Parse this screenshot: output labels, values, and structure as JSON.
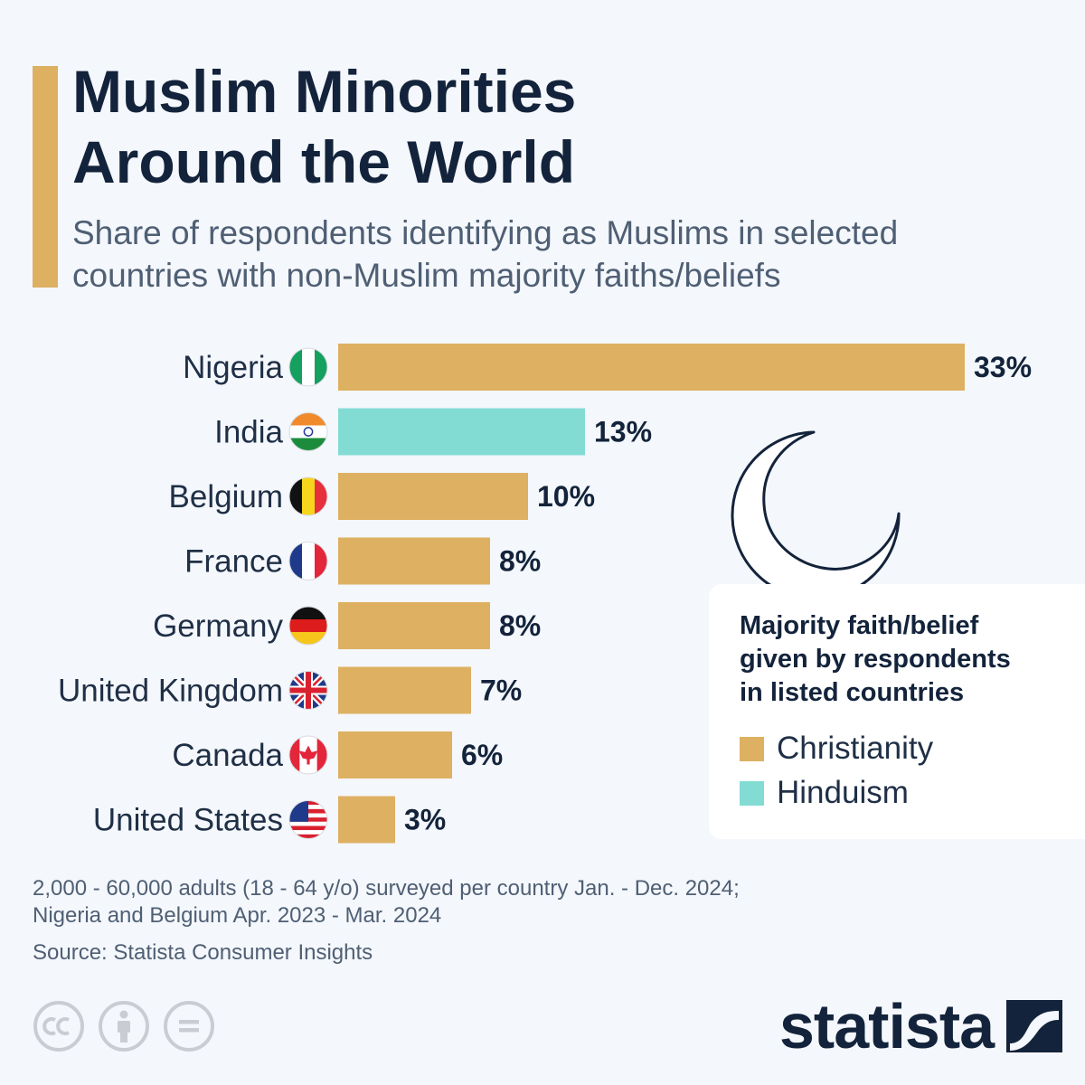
{
  "title": {
    "line1": "Muslim Minorities",
    "line2": "Around the World"
  },
  "subtitle": {
    "line1": "Share of respondents identifying as Muslims in selected",
    "line2": "countries with non-Muslim majority faiths/beliefs"
  },
  "chart_data": {
    "type": "bar",
    "orientation": "horizontal",
    "title": "Muslim Minorities Around the World",
    "unit": "%",
    "categories": [
      "Nigeria",
      "India",
      "Belgium",
      "France",
      "Germany",
      "United Kingdom",
      "Canada",
      "United States"
    ],
    "values": [
      33,
      13,
      10,
      8,
      8,
      7,
      6,
      3
    ],
    "labels": [
      "33%",
      "13%",
      "10%",
      "8%",
      "8%",
      "7%",
      "6%",
      "3%"
    ],
    "majority_faith": [
      "Christianity",
      "Hinduism",
      "Christianity",
      "Christianity",
      "Christianity",
      "Christianity",
      "Christianity",
      "Christianity"
    ],
    "xlim": [
      0,
      33
    ],
    "colors": {
      "Christianity": "#ddb062",
      "Hinduism": "#82dcd4"
    }
  },
  "legend": {
    "title_line1": "Majority faith/belief",
    "title_line2": "given by respondents",
    "title_line3": "in listed countries",
    "items": [
      {
        "label": "Christianity",
        "color": "#ddb062"
      },
      {
        "label": "Hinduism",
        "color": "#82dcd4"
      }
    ]
  },
  "icons": {
    "decoration": "crescent-moon-icon",
    "flags": [
      "nigeria-flag-icon",
      "india-flag-icon",
      "belgium-flag-icon",
      "france-flag-icon",
      "germany-flag-icon",
      "uk-flag-icon",
      "canada-flag-icon",
      "usa-flag-icon"
    ]
  },
  "footnote": {
    "line1": "2,000 - 60,000 adults (18 - 64 y/o) surveyed per country Jan. - Dec. 2024;",
    "line2": "Nigeria and Belgium Apr. 2023 - Mar. 2024"
  },
  "source": "Source: Statista Consumer Insights",
  "logo": {
    "text": "statista"
  },
  "license_icons": [
    "cc-icon",
    "by-icon",
    "nd-icon"
  ]
}
